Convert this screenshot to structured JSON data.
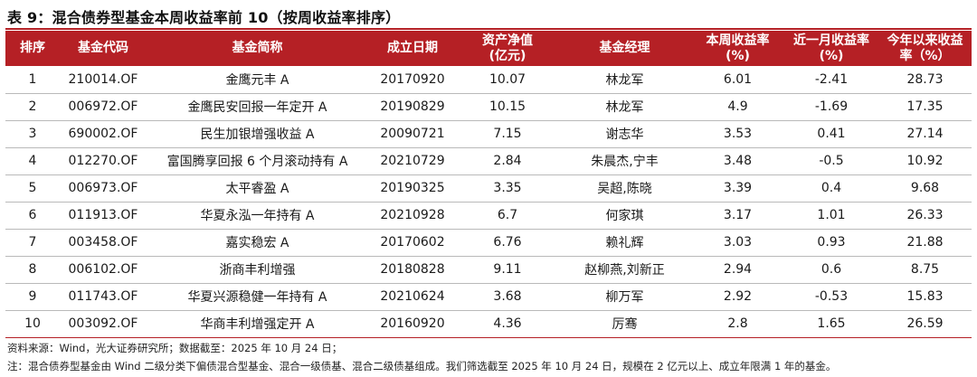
{
  "title": "表 9：混合债券型基金本周收益率前 10（按周收益率排序）",
  "headers": [
    "排序",
    "基金代码",
    "基金简称",
    "成立日期",
    "资产净值\n(亿元)",
    "基金经理",
    "本周收益率\n(%)",
    "近一月收益率\n(%)",
    "今年以来收益\n率（%）"
  ],
  "rows": [
    [
      "1",
      "210014.OF",
      "金鹰元丰 A",
      "20170920",
      "10.07",
      "林龙军",
      "6.01",
      "-2.41",
      "28.73"
    ],
    [
      "2",
      "006972.OF",
      "金鹰民安回报一年定开 A",
      "20190829",
      "10.15",
      "林龙军",
      "4.9",
      "-1.69",
      "17.35"
    ],
    [
      "3",
      "690002.OF",
      "民生加银增强收益 A",
      "20090721",
      "7.15",
      "谢志华",
      "3.53",
      "0.41",
      "27.14"
    ],
    [
      "4",
      "012270.OF",
      "富国腾享回报 6 个月滚动持有 A",
      "20210729",
      "2.84",
      "朱晨杰,宁丰",
      "3.48",
      "-0.5",
      "10.92"
    ],
    [
      "5",
      "006973.OF",
      "太平睿盈 A",
      "20190325",
      "3.35",
      "吴超,陈晓",
      "3.39",
      "0.4",
      "9.68"
    ],
    [
      "6",
      "011913.OF",
      "华夏永泓一年持有 A",
      "20210928",
      "6.7",
      "何家琪",
      "3.17",
      "1.01",
      "26.33"
    ],
    [
      "7",
      "003458.OF",
      "嘉实稳宏 A",
      "20170602",
      "6.76",
      "赖礼辉",
      "3.03",
      "0.93",
      "21.88"
    ],
    [
      "8",
      "006102.OF",
      "浙商丰利增强",
      "20180828",
      "9.11",
      "赵柳燕,刘新正",
      "2.94",
      "0.6",
      "8.75"
    ],
    [
      "9",
      "011743.OF",
      "华夏兴源稳健一年持有 A",
      "20210624",
      "3.68",
      "柳万军",
      "2.92",
      "-0.53",
      "15.83"
    ],
    [
      "10",
      "003092.OF",
      "华商丰利增强定开 A",
      "20160920",
      "4.36",
      "厉骞",
      "2.8",
      "1.65",
      "26.59"
    ]
  ],
  "source_note": "资料来源：Wind，光大证券研究所；数据截至：2025 年 10 月 24 日；",
  "footnote": "注：混合债券型基金由 Wind 二级分类下偏债混合型基金、混合一级债基、混合二级债基组成。我们筛选截至 2025 年 10 月 24 日，规模在 2 亿元以上、成立年限满 1 年的基金。",
  "colors": {
    "header_bg": "#b52025",
    "header_text": "#ffffff",
    "row_rule": "#b9b9b9"
  }
}
